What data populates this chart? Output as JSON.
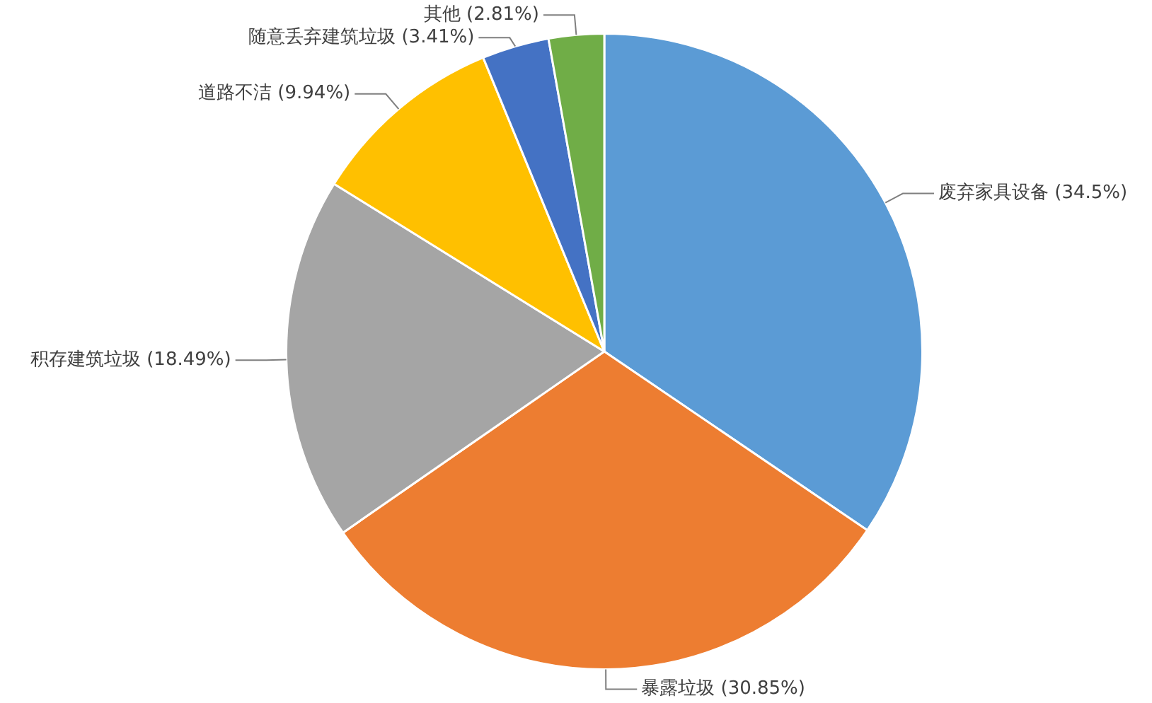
{
  "chart_data": {
    "type": "pie",
    "categories": [
      "废弃家具设备",
      "暴露垃圾",
      "积存建筑垃圾",
      "道路不洁",
      "随意丢弃建筑垃圾",
      "其他"
    ],
    "values": [
      34.5,
      30.85,
      18.49,
      9.94,
      3.41,
      2.81
    ],
    "colors": [
      "#5b9bd5",
      "#ed7d31",
      "#a5a5a5",
      "#ffc000",
      "#4472c4",
      "#70ad47"
    ],
    "value_labels": [
      "(34.5%)",
      "(30.85%)",
      "(18.49%)",
      "(9.94%)",
      "(3.41%)",
      "(2.81%)"
    ],
    "legend": false
  }
}
